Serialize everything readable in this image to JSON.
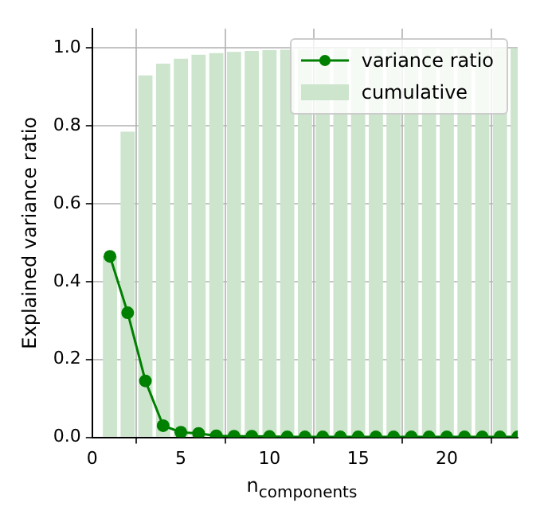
{
  "chart_data": {
    "type": "bar",
    "ylabel": "Explained variance ratio",
    "xlabel": "n$_{components}$",
    "x": [
      1,
      2,
      3,
      4,
      5,
      6,
      7,
      8,
      9,
      10,
      11,
      12,
      13,
      14,
      15,
      16,
      17,
      18,
      19,
      20,
      21,
      22,
      23,
      24
    ],
    "series": [
      {
        "name": "variance ratio",
        "type": "line",
        "color": "#008000",
        "values": [
          0.465,
          0.32,
          0.145,
          0.03,
          0.013,
          0.01,
          0.004,
          0.003,
          0.003,
          0.002,
          0.001,
          0.001,
          0.001,
          0.001,
          0.001,
          0.001,
          0.001,
          0.001,
          0.001,
          0.001,
          0.001,
          0.001,
          0.001,
          0.001
        ]
      },
      {
        "name": "cumulative",
        "color": "#cce5cc",
        "values": [
          0.465,
          0.785,
          0.93,
          0.96,
          0.973,
          0.983,
          0.987,
          0.99,
          0.993,
          0.995,
          0.996,
          0.997,
          0.998,
          0.998,
          0.999,
          0.999,
          0.999,
          1.0,
          1.0,
          1.0,
          1.0,
          1.0,
          1.0,
          1.0
        ]
      }
    ],
    "xlim": [
      0,
      24
    ],
    "xticks": [
      0,
      5,
      10,
      15,
      20
    ],
    "ylim": [
      0,
      1.05
    ],
    "yticks": [
      {
        "value": 0,
        "label": "0.0"
      },
      0.2,
      0.4,
      0.6,
      0.8,
      {
        "value": 1,
        "label": "1.0"
      }
    ],
    "grid": true,
    "legend": "top right",
    "marker": "circle"
  }
}
